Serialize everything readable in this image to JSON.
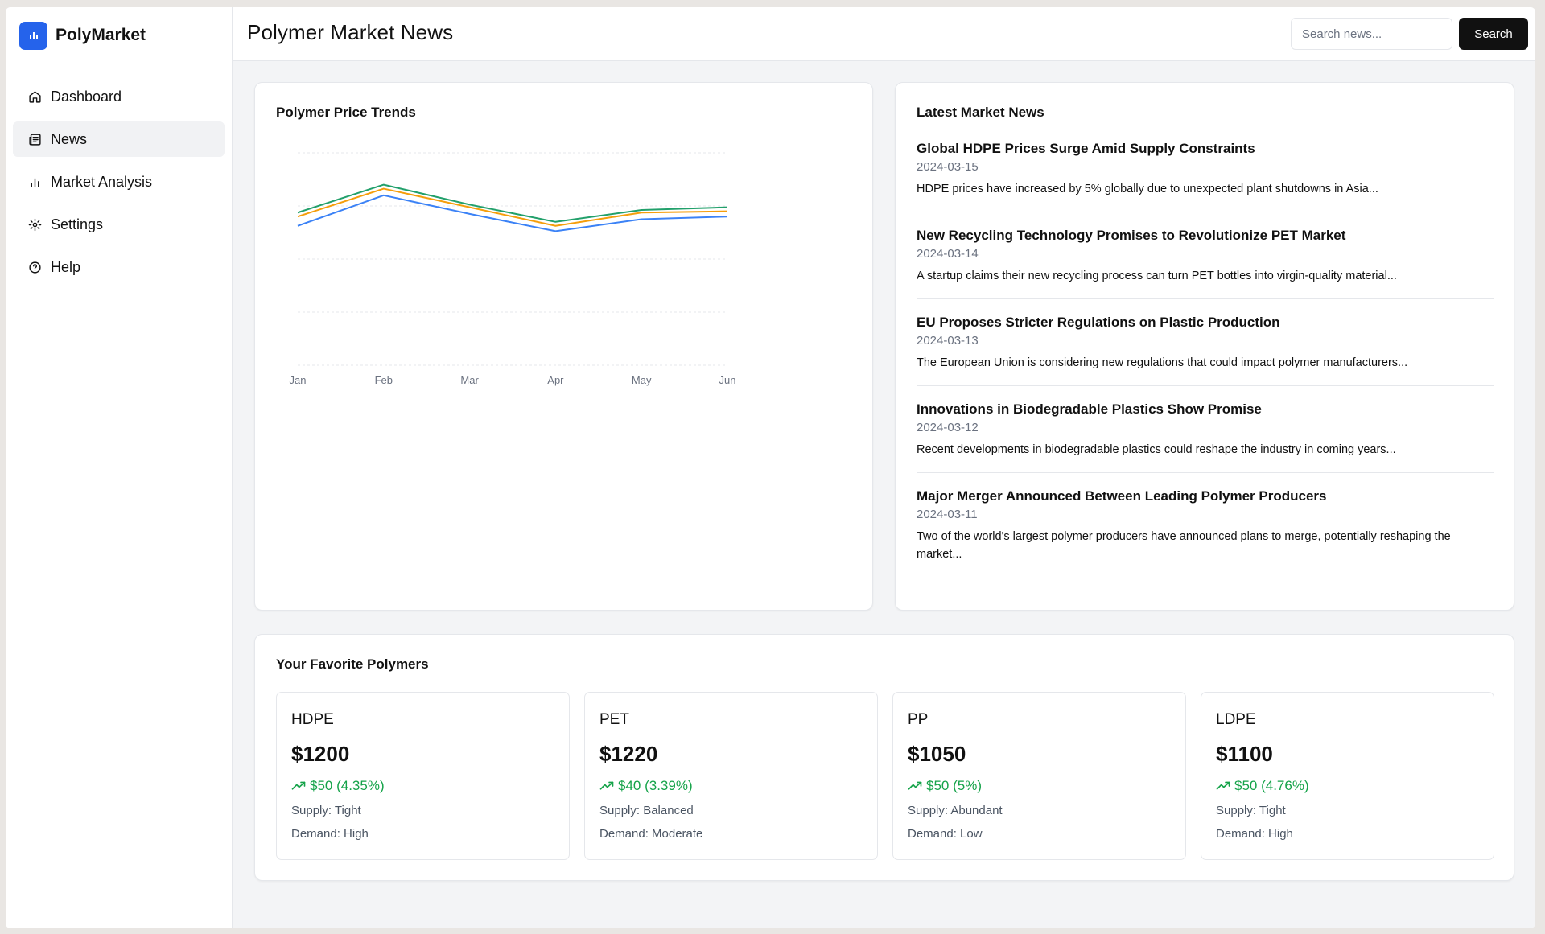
{
  "app": {
    "name": "PolyMarket"
  },
  "sidebar": {
    "items": [
      {
        "label": "Dashboard",
        "icon": "home-icon"
      },
      {
        "label": "News",
        "icon": "newspaper-icon",
        "active": true
      },
      {
        "label": "Market Analysis",
        "icon": "bar-chart-icon"
      },
      {
        "label": "Settings",
        "icon": "gear-icon"
      },
      {
        "label": "Help",
        "icon": "help-circle-icon"
      }
    ]
  },
  "header": {
    "title": "Polymer Market News",
    "search_placeholder": "Search news...",
    "search_label": "Search"
  },
  "chart_card": {
    "title": "Polymer Price Trends"
  },
  "chart_data": {
    "type": "line",
    "title": "Polymer Price Trends",
    "categories": [
      "Jan",
      "Feb",
      "Mar",
      "Apr",
      "May",
      "Jun"
    ],
    "ylim": [
      0,
      1600
    ],
    "grid": true,
    "series": [
      {
        "color": "#3b82f6",
        "values": [
          1050,
          1280,
          1140,
          1010,
          1100,
          1120
        ]
      },
      {
        "color": "#f59e0b",
        "values": [
          1120,
          1330,
          1190,
          1050,
          1150,
          1160
        ]
      },
      {
        "color": "#22a06b",
        "values": [
          1150,
          1360,
          1210,
          1080,
          1170,
          1190
        ]
      }
    ]
  },
  "news_card": {
    "title": "Latest Market News",
    "items": [
      {
        "headline": "Global HDPE Prices Surge Amid Supply Constraints",
        "date": "2024-03-15",
        "summary": "HDPE prices have increased by 5% globally due to unexpected plant shutdowns in Asia..."
      },
      {
        "headline": "New Recycling Technology Promises to Revolutionize PET Market",
        "date": "2024-03-14",
        "summary": "A startup claims their new recycling process can turn PET bottles into virgin-quality material..."
      },
      {
        "headline": "EU Proposes Stricter Regulations on Plastic Production",
        "date": "2024-03-13",
        "summary": "The European Union is considering new regulations that could impact polymer manufacturers..."
      },
      {
        "headline": "Innovations in Biodegradable Plastics Show Promise",
        "date": "2024-03-12",
        "summary": "Recent developments in biodegradable plastics could reshape the industry in coming years..."
      },
      {
        "headline": "Major Merger Announced Between Leading Polymer Producers",
        "date": "2024-03-11",
        "summary": "Two of the world's largest polymer producers have announced plans to merge, potentially reshaping the market..."
      }
    ]
  },
  "favorites": {
    "title": "Your Favorite Polymers",
    "items": [
      {
        "name": "HDPE",
        "price": "$1200",
        "change": "$50 (4.35%)",
        "supply": "Supply: Tight",
        "demand": "Demand: High"
      },
      {
        "name": "PET",
        "price": "$1220",
        "change": "$40 (3.39%)",
        "supply": "Supply: Balanced",
        "demand": "Demand: Moderate"
      },
      {
        "name": "PP",
        "price": "$1050",
        "change": "$50 (5%)",
        "supply": "Supply: Abundant",
        "demand": "Demand: Low"
      },
      {
        "name": "LDPE",
        "price": "$1100",
        "change": "$50 (4.76%)",
        "supply": "Supply: Tight",
        "demand": "Demand: High"
      }
    ]
  },
  "colors": {
    "accent": "#2563eb",
    "positive": "#16a34a"
  }
}
